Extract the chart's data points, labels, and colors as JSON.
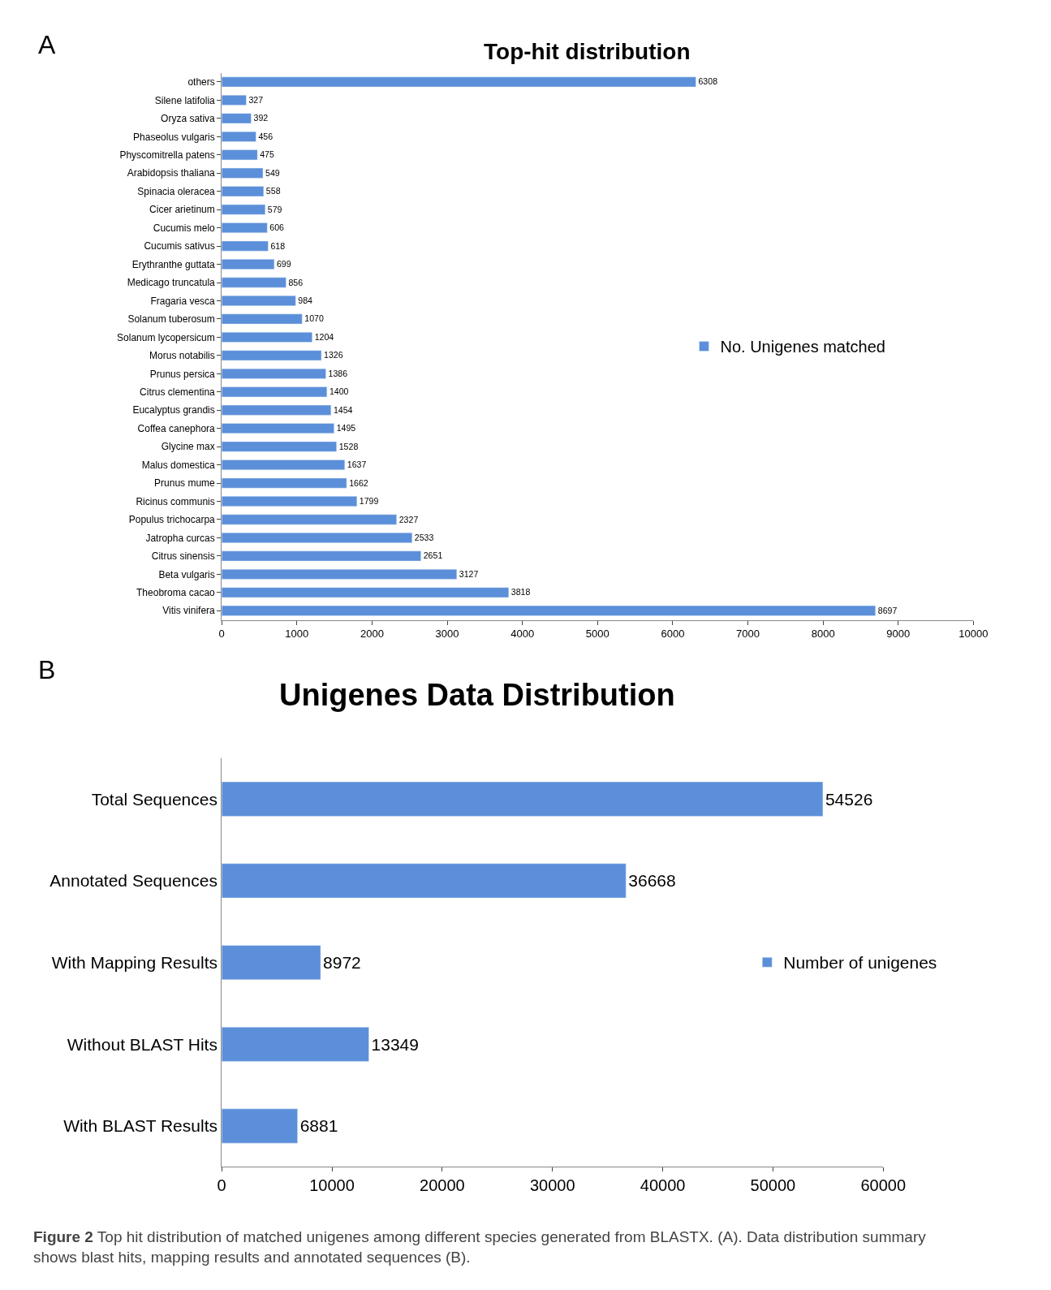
{
  "chart_data": [
    {
      "type": "bar",
      "orientation": "horizontal",
      "title": "Top-hit distribution",
      "annotations": [
        "A"
      ],
      "categories": [
        "others",
        "Silene latifolia",
        "Oryza sativa",
        "Phaseolus vulgaris",
        "Physcomitrella patens",
        "Arabidopsis thaliana",
        "Spinacia oleracea",
        "Cicer arietinum",
        "Cucumis melo",
        "Cucumis sativus",
        "Erythranthe guttata",
        "Medicago truncatula",
        "Fragaria vesca",
        "Solanum tuberosum",
        "Solanum lycopersicum",
        "Morus notabilis",
        "Prunus persica",
        "Citrus clementina",
        "Eucalyptus grandis",
        "Coffea canephora",
        "Glycine max",
        "Malus domestica",
        "Prunus mume",
        "Ricinus communis",
        "Populus trichocarpa",
        "Jatropha curcas",
        "Citrus sinensis",
        "Beta vulgaris",
        "Theobroma cacao",
        "Vitis vinifera"
      ],
      "series": [
        {
          "name": "No. Unigenes matched",
          "color": "#5b8fd9",
          "values": [
            6308,
            327,
            392,
            456,
            475,
            549,
            558,
            579,
            606,
            618,
            699,
            856,
            984,
            1070,
            1204,
            1326,
            1386,
            1400,
            1454,
            1495,
            1528,
            1637,
            1662,
            1799,
            2327,
            2533,
            2651,
            3127,
            3818,
            8697
          ]
        }
      ],
      "xlim": [
        0,
        10000
      ],
      "xticks": [
        0,
        1000,
        2000,
        3000,
        4000,
        5000,
        6000,
        7000,
        8000,
        9000,
        10000
      ],
      "data_labels": true,
      "legend": "right"
    },
    {
      "type": "bar",
      "orientation": "horizontal",
      "title": "Unigenes Data Distribution",
      "annotations": [
        "B",
        "Figure 2 Top hit distribution of matched unigenes among different species generated from BLASTX. (A). Data distribution summary shows blast hits, mapping results and annotated sequences (B)."
      ],
      "categories": [
        "Total Sequences",
        "Annotated Sequences",
        "With Mapping Results",
        "Without BLAST Hits",
        "With BLAST Results"
      ],
      "series": [
        {
          "name": "Number of unigenes",
          "color": "#5b8fd9",
          "values": [
            54526,
            36668,
            8972,
            13349,
            6881
          ]
        }
      ],
      "xlim": [
        0,
        60000
      ],
      "xticks": [
        0,
        10000,
        20000,
        30000,
        40000,
        50000,
        60000
      ],
      "data_labels": true,
      "legend": "right"
    }
  ]
}
